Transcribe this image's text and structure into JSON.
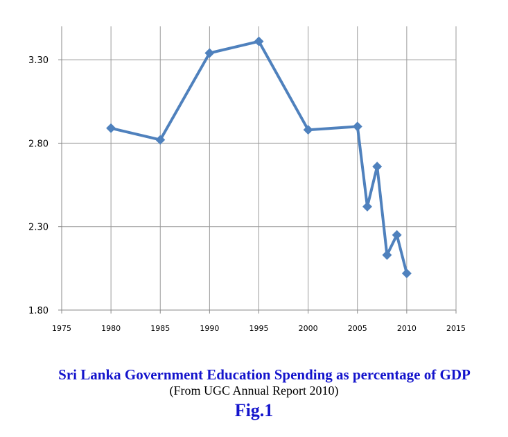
{
  "colors": {
    "caption": "#1414cc",
    "series": "#4f81bd",
    "grid": "#9a9a9a",
    "axis": "#888888"
  },
  "chart_data": {
    "type": "line",
    "title": "Sri Lanka Government Education Spending as percentage of GDP",
    "subtitle": "(From UGC Annual Report 2010)",
    "figure_label": "Fig.1",
    "xlabel": "",
    "ylabel": "",
    "xlim": [
      1975,
      2015
    ],
    "ylim": [
      1.8,
      3.5
    ],
    "x_ticks": [
      "1975",
      "1980",
      "1985",
      "1990",
      "1995",
      "2000",
      "2005",
      "2010",
      "2015"
    ],
    "y_ticks": [
      "1.80",
      "2.30",
      "2.80",
      "3.30"
    ],
    "grid": true,
    "legend": "none",
    "series": [
      {
        "name": "Education spending (% of GDP)",
        "marker": "diamond",
        "x": [
          1980,
          1985,
          1990,
          1995,
          2000,
          2005,
          2006,
          2007,
          2008,
          2009,
          2010
        ],
        "values": [
          2.89,
          2.82,
          3.34,
          3.41,
          2.88,
          2.9,
          2.42,
          2.66,
          2.13,
          2.25,
          2.02
        ]
      }
    ]
  }
}
